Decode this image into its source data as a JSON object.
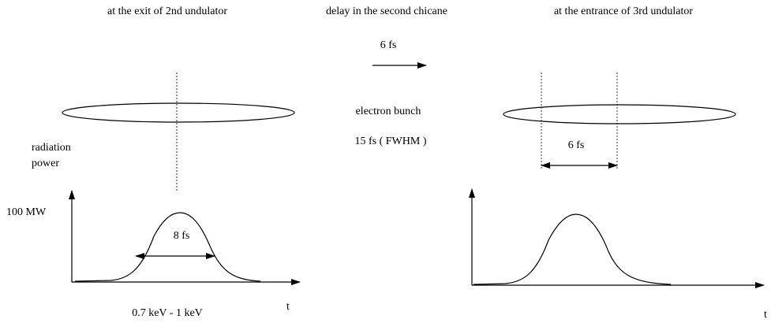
{
  "left": {
    "title": "at the exit of 2nd undulator",
    "y_label": [
      "radiation",
      "power"
    ],
    "power_label": "100 MW",
    "width_label": "8 fs",
    "energy_label": "0.7 keV - 1 keV",
    "t_label": "t"
  },
  "middle": {
    "title": "delay in the second chicane",
    "delay_label": "6 fs",
    "bunch_label": "electron bunch",
    "bunch_length": "15 fs ( FWHM )"
  },
  "right": {
    "title": "at the entrance of 3rd undulator",
    "shift_label": "6 fs",
    "t_label": "t"
  }
}
